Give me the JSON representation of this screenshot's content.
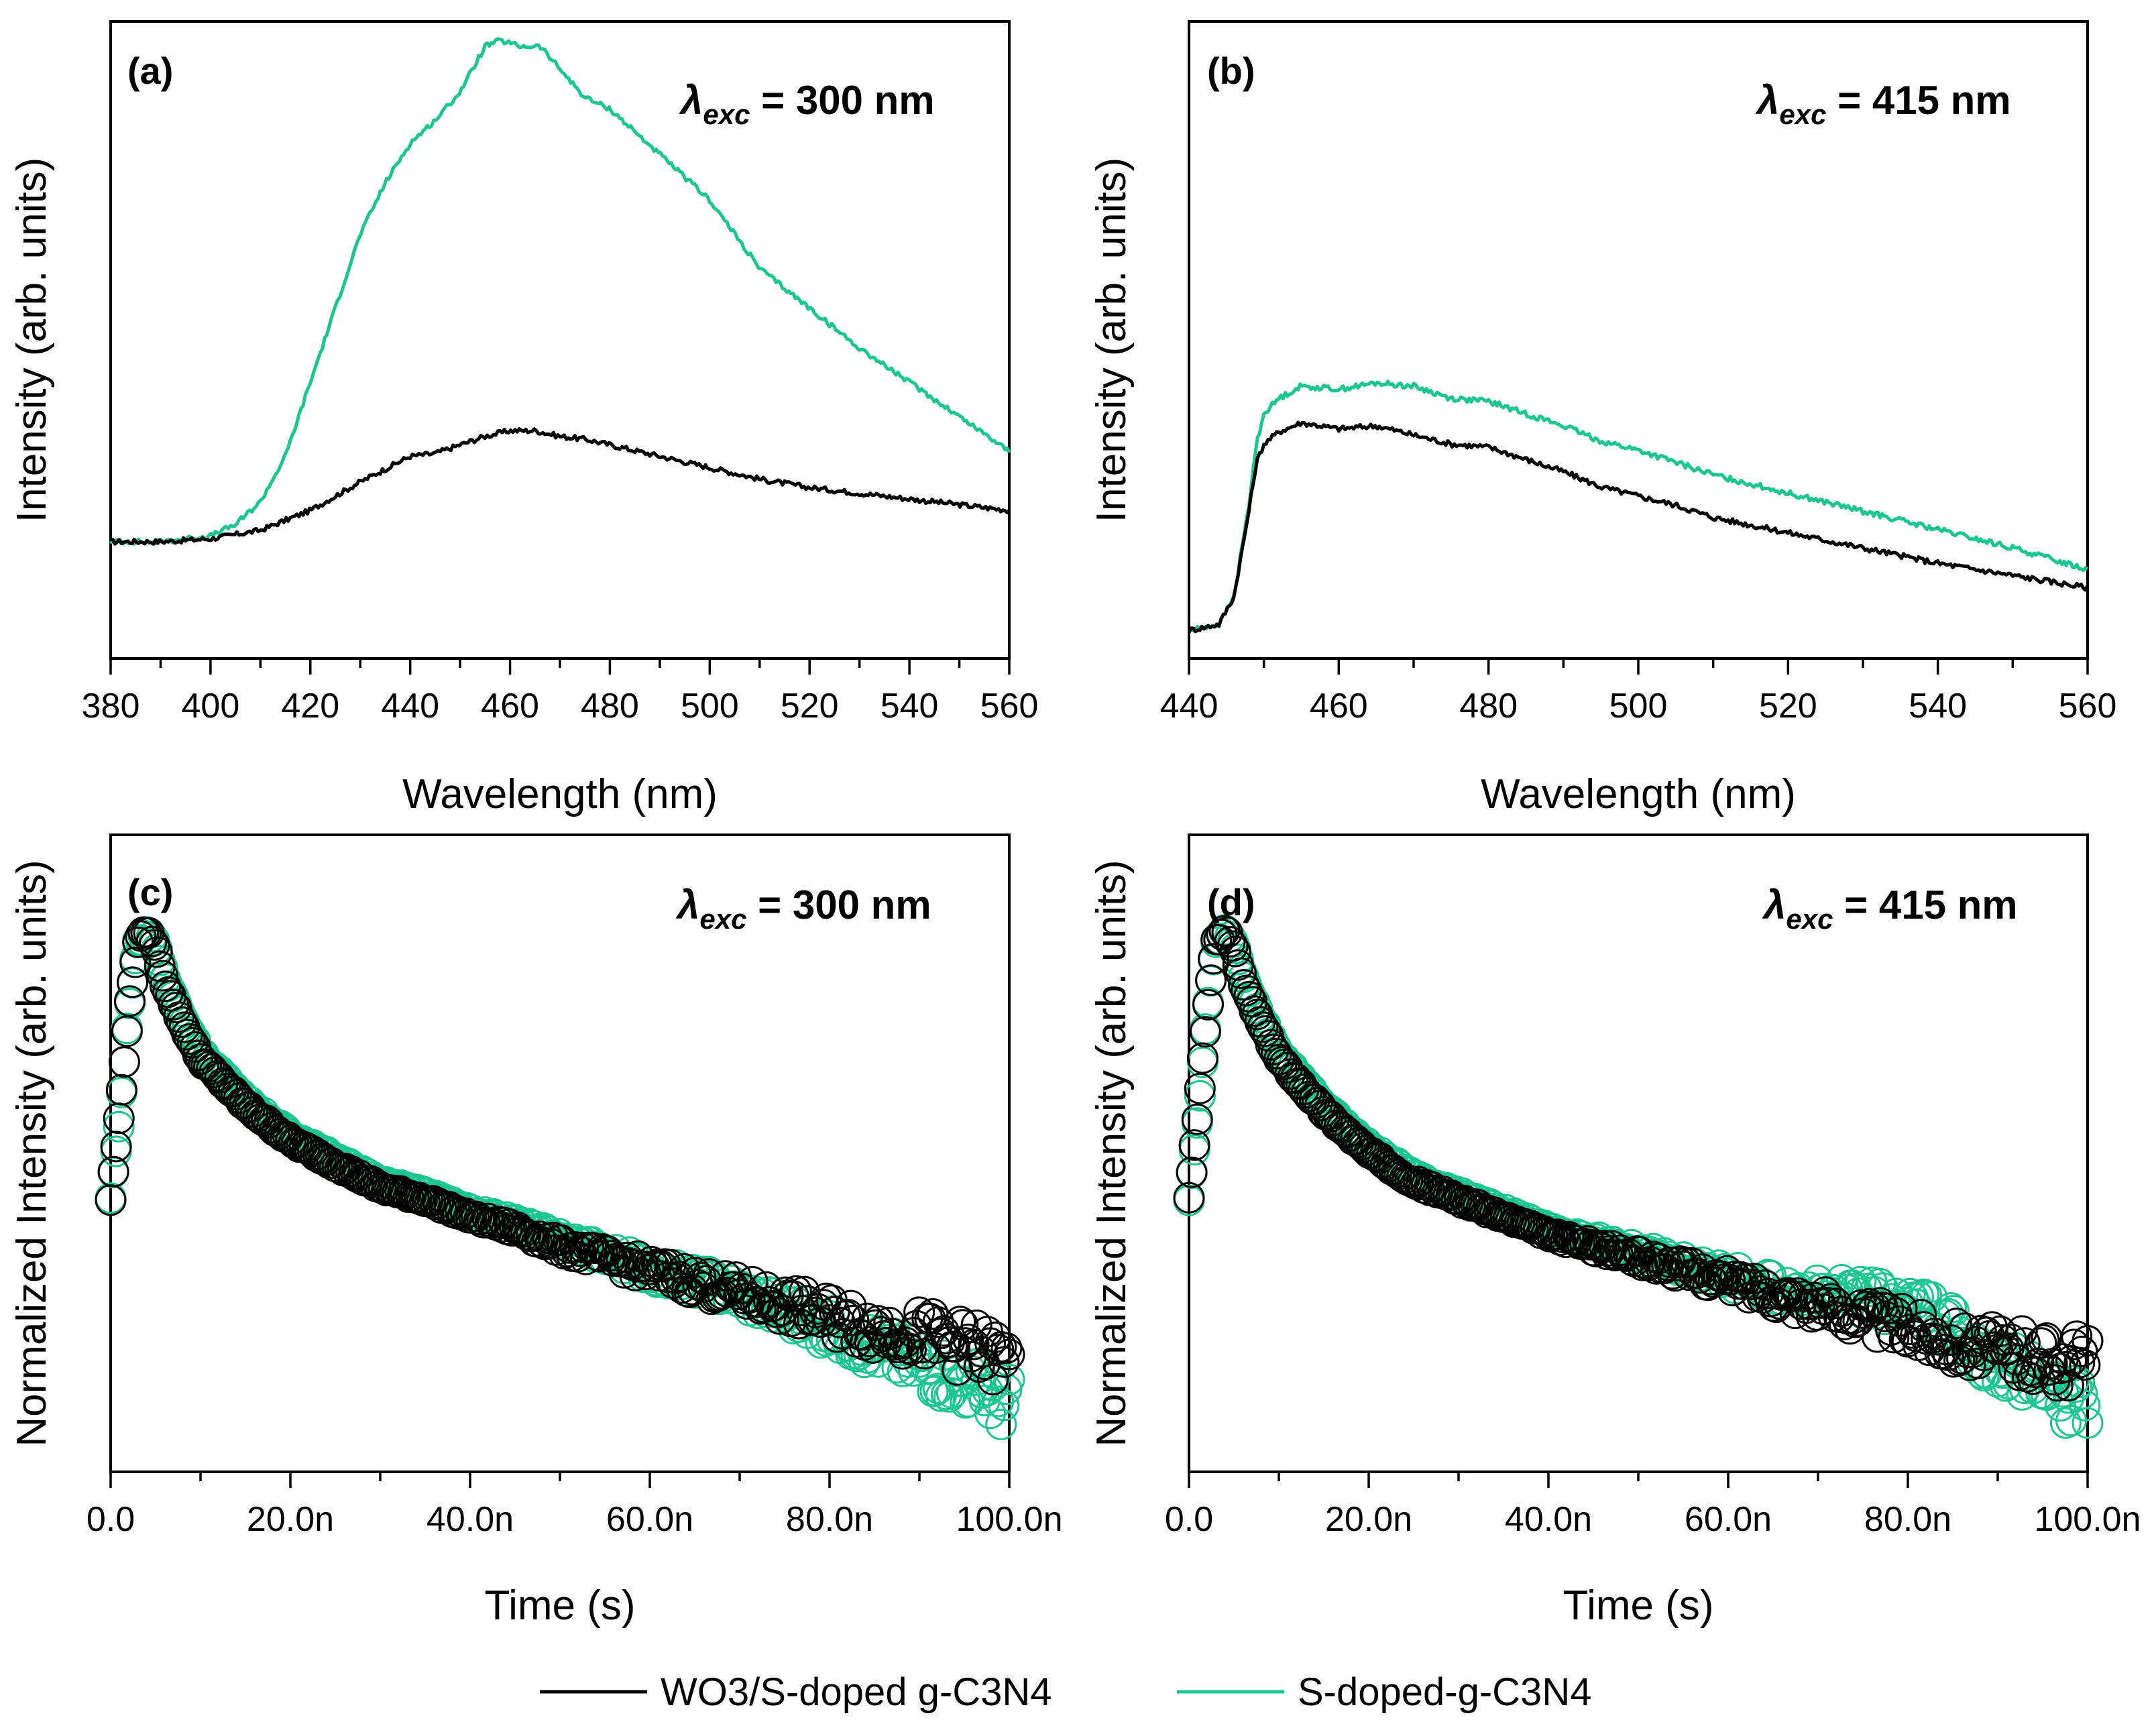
{
  "colors": {
    "black_series": "#000000",
    "green_series": "#1cc690"
  },
  "legend": {
    "items": [
      {
        "text": "WO3/S-doped g-C3N4",
        "color": "#000000"
      },
      {
        "text": "S-doped-g-C3N4",
        "color": "#1cc690"
      }
    ]
  },
  "panels": {
    "a": {
      "label": "(a)",
      "annotation": "λexc = 300 nm",
      "annot_lambda": "λ",
      "annot_sub": "exc",
      "annot_rest": " = 300 nm"
    },
    "b": {
      "label": "(b)",
      "annotation": "λexc = 415 nm",
      "annot_lambda": "λ",
      "annot_sub": "exc",
      "annot_rest": " = 415 nm"
    },
    "c": {
      "label": "(c)",
      "annotation": "λexc = 300 nm",
      "annot_lambda": "λ",
      "annot_sub": "exc",
      "annot_rest": " = 300 nm"
    },
    "d": {
      "label": "(d)",
      "annotation": "λexc = 415 nm",
      "annot_lambda": "λ",
      "annot_sub": "exc",
      "annot_rest": " = 415 nm"
    }
  },
  "chart_data": [
    {
      "id": "a",
      "type": "line",
      "title": "(a)",
      "xlabel": "Wavelength (nm)",
      "ylabel": "Intensity (arb. units)",
      "xlim": [
        380,
        560
      ],
      "ylim": [
        0,
        100
      ],
      "x_ticks": [
        380,
        400,
        420,
        440,
        460,
        480,
        500,
        520,
        540,
        560
      ],
      "x_tick_labels": [
        "380",
        "400",
        "420",
        "440",
        "460",
        "480",
        "500",
        "520",
        "540",
        "560"
      ],
      "series": [
        {
          "name": "WO3/S-doped g-C3N4",
          "x": [
            380,
            390,
            400,
            410,
            420,
            430,
            440,
            445,
            450,
            455,
            460,
            465,
            470,
            475,
            480,
            490,
            500,
            510,
            520,
            530,
            540,
            550,
            560
          ],
          "y": [
            11,
            11,
            11.5,
            13,
            16.5,
            21.5,
            26,
            26.5,
            28,
            29.5,
            30.5,
            30.5,
            29.5,
            29,
            28,
            26,
            24,
            22,
            20.5,
            19.5,
            18.5,
            17.5,
            16.5
          ]
        },
        {
          "name": "S-doped-g-C3N4",
          "x": [
            380,
            390,
            400,
            405,
            410,
            415,
            420,
            425,
            430,
            435,
            440,
            445,
            450,
            455,
            458,
            462,
            466,
            470,
            475,
            480,
            490,
            500,
            510,
            520,
            530,
            540,
            550,
            560
          ],
          "y": [
            11,
            11,
            12,
            14,
            18,
            26,
            39,
            52,
            65,
            74,
            81,
            85,
            90,
            98,
            99,
            98,
            98,
            94,
            89,
            87,
            79,
            71,
            59,
            52,
            45,
            39,
            33,
            27
          ]
        }
      ]
    },
    {
      "id": "b",
      "type": "line",
      "title": "(b)",
      "xlabel": "Wavelength (nm)",
      "ylabel": "Intensity (arb. units)",
      "xlim": [
        440,
        560
      ],
      "ylim": [
        0,
        100
      ],
      "x_ticks": [
        440,
        460,
        480,
        500,
        520,
        540,
        560
      ],
      "x_tick_labels": [
        "440",
        "460",
        "480",
        "500",
        "520",
        "540",
        "560"
      ],
      "series": [
        {
          "name": "WO3/S-doped g-C3N4",
          "x": [
            440,
            444,
            446,
            448,
            449,
            450,
            452,
            455,
            460,
            465,
            470,
            475,
            480,
            485,
            490,
            495,
            500,
            505,
            510,
            520,
            530,
            540,
            550,
            560
          ],
          "y": [
            2.5,
            3.5,
            8,
            22,
            30,
            33,
            35,
            36.5,
            35.5,
            36,
            34.5,
            33,
            32.5,
            30.5,
            28.5,
            26,
            24.5,
            23,
            21,
            18.5,
            16,
            13.5,
            11.5,
            9.5
          ]
        },
        {
          "name": "S-doped-g-C3N4",
          "x": [
            440,
            444,
            446,
            448,
            449,
            450,
            452,
            455,
            460,
            465,
            470,
            475,
            480,
            485,
            490,
            495,
            500,
            505,
            510,
            520,
            530,
            540,
            550,
            560
          ],
          "y": [
            2.5,
            3.5,
            8,
            23,
            33,
            38,
            40.5,
            42.5,
            42,
            43,
            42.5,
            40.5,
            40,
            38,
            36,
            33.5,
            32,
            30,
            28,
            25,
            22,
            19,
            16,
            12.5
          ]
        }
      ]
    },
    {
      "id": "c",
      "type": "scatter",
      "title": "(c)",
      "xlabel": "Time (s)",
      "ylabel": "Normalized Intensity (arb. units)",
      "xlim": [
        0,
        100
      ],
      "ylim": [
        0,
        100
      ],
      "x_ticks": [
        0,
        20,
        40,
        60,
        80,
        100
      ],
      "x_tick_labels": [
        "0.0",
        "20.0n",
        "40.0n",
        "60.0n",
        "80.0n",
        "100.0n"
      ],
      "series": [
        {
          "name": "WO3/S-doped g-C3N4",
          "x": [
            0,
            1,
            2,
            3,
            4,
            5,
            6,
            8,
            10,
            15,
            20,
            25,
            30,
            35,
            40,
            45,
            50,
            55,
            60,
            65,
            70,
            75,
            80,
            85,
            90,
            95,
            100
          ],
          "y": [
            40,
            55,
            72,
            84,
            86,
            83,
            77,
            70,
            64,
            56,
            50,
            46,
            42,
            40,
            37,
            35,
            32,
            30,
            28,
            26,
            24,
            22,
            20,
            18,
            17,
            15,
            12
          ]
        },
        {
          "name": "S-doped-g-C3N4",
          "x": [
            0,
            1,
            2,
            3,
            4,
            5,
            6,
            8,
            10,
            15,
            20,
            25,
            30,
            35,
            40,
            45,
            50,
            55,
            60,
            65,
            70,
            75,
            80,
            85,
            90,
            95,
            100
          ],
          "y": [
            40,
            54,
            72,
            84,
            86,
            84,
            78,
            71,
            65,
            57,
            51,
            47,
            43,
            41,
            38,
            36,
            33,
            31,
            28,
            26,
            24,
            21,
            18,
            15,
            12,
            9,
            5
          ]
        }
      ]
    },
    {
      "id": "d",
      "type": "scatter",
      "title": "(d)",
      "xlabel": "Time (s)",
      "ylabel": "Normalized Intensity (arb. units)",
      "xlim": [
        0,
        100
      ],
      "ylim": [
        0,
        100
      ],
      "x_ticks": [
        0,
        20,
        40,
        60,
        80,
        100
      ],
      "x_tick_labels": [
        "0.0",
        "20.0n",
        "40.0n",
        "60.0n",
        "80.0n",
        "100.0n"
      ],
      "series": [
        {
          "name": "WO3/S-doped g-C3N4",
          "x": [
            0,
            1,
            2,
            3,
            4,
            5,
            6,
            8,
            10,
            15,
            20,
            25,
            30,
            35,
            40,
            45,
            50,
            55,
            60,
            65,
            70,
            75,
            80,
            85,
            90,
            95,
            100
          ],
          "y": [
            40,
            55,
            72,
            84,
            86,
            83,
            77,
            70,
            64,
            55,
            48,
            43,
            40,
            37,
            34,
            32,
            30,
            28,
            26,
            24,
            22,
            20,
            18,
            16,
            14,
            13,
            12
          ]
        },
        {
          "name": "S-doped-g-C3N4",
          "x": [
            0,
            1,
            2,
            3,
            4,
            5,
            6,
            8,
            10,
            15,
            20,
            25,
            30,
            35,
            40,
            45,
            50,
            55,
            60,
            65,
            70,
            75,
            80,
            85,
            90,
            95,
            100
          ],
          "y": [
            40,
            54,
            72,
            84,
            86,
            84,
            78,
            71,
            65,
            56,
            49,
            44,
            41,
            38,
            35,
            33,
            31,
            29,
            27,
            25,
            24,
            23,
            22,
            18,
            12,
            8,
            5
          ]
        }
      ]
    }
  ]
}
